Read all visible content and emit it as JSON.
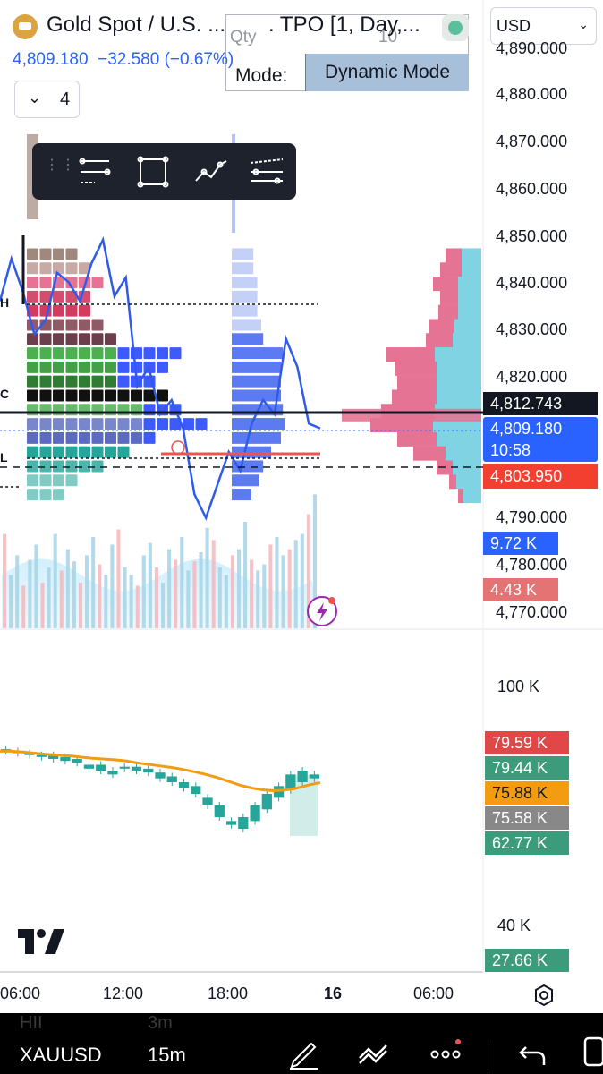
{
  "header": {
    "title": "Gold Spot / U.S. ...",
    "price": "4,809.180",
    "change": "−32.580",
    "change_pct": "(−0.67%)",
    "indicator_count": "4",
    "currency": "USD"
  },
  "tpo_panel": {
    "title": ". TPO [1, Day,...",
    "qty_label": "Qty",
    "qty_value": "10",
    "mode_label": "Mode:",
    "mode_value": "Dynamic Mode"
  },
  "toolbar": {
    "icons": [
      "fib-lines-icon",
      "rectangle-icon",
      "trend-path-icon",
      "parallel-lines-icon"
    ]
  },
  "price_axis": {
    "labels": [
      "4,890.000",
      "4,880.000",
      "4,870.000",
      "4,860.000",
      "4,850.000",
      "4,840.000",
      "4,830.000",
      "4,820.000",
      "4,790.000",
      "4,780.000",
      "4,770.000"
    ],
    "tag_last": "4,812.743",
    "tag_price": "4,809.180",
    "tag_countdown": "10:58",
    "tag_low": "4,803.950",
    "tag_vol_buy": "9.72 K",
    "tag_vol_sell": "4.43 K"
  },
  "tpo_markers": {
    "h": "H",
    "c": "C",
    "l": "L"
  },
  "lower_axis": {
    "label_top": "100 K",
    "label_bottom": "40 K",
    "tags": [
      "79.59 K",
      "79.44 K",
      "75.88 K",
      "75.58 K",
      "62.77 K",
      "27.66 K"
    ]
  },
  "time_axis": [
    "06:00",
    "12:00",
    "18:00",
    "16",
    "06:00"
  ],
  "bottom_bar": {
    "symbol": "XAUUSD",
    "timeframe": "15m",
    "ghost_symbol": "HII",
    "ghost_timeframe": "3m"
  },
  "colors": {
    "up": "#26a69a",
    "down": "#ef5350",
    "blue": "#2962ff",
    "orange": "#f39c12",
    "tpo_green": "#4caf50",
    "tpo_pink": "#e76f8f",
    "tpo_blue": "#3d5afe"
  },
  "chart_data": {
    "type": "candlestick",
    "price_range": [
      4770,
      4890
    ],
    "profile_prices": [
      4847,
      4844,
      4841,
      4838,
      4835,
      4832,
      4829,
      4826,
      4823,
      4820,
      4817,
      4814,
      4811,
      4808,
      4805,
      4802,
      4799,
      4796
    ],
    "profile_left_sell": [
      18,
      24,
      28,
      20,
      22,
      28,
      30,
      54,
      46,
      44,
      50,
      60,
      70,
      44,
      36,
      18,
      8,
      6
    ],
    "profile_left_buy": [
      22,
      22,
      26,
      26,
      26,
      30,
      32,
      52,
      50,
      50,
      50,
      52,
      54,
      50,
      40,
      32,
      28,
      20
    ],
    "line_series": [
      4836,
      4845,
      4838,
      4829,
      4832,
      4842,
      4840,
      4836,
      4844,
      4849,
      4837,
      4841,
      4818,
      4822,
      4812,
      4815,
      4809,
      4795,
      4790,
      4797,
      4804,
      4800,
      4810,
      4815,
      4812,
      4828,
      4822,
      4810,
      4809
    ],
    "volume_values": [
      62,
      35,
      48,
      28,
      45,
      55,
      30,
      40,
      62,
      38,
      52,
      44,
      30,
      48,
      60,
      42,
      35,
      55,
      65,
      40,
      35,
      28,
      48,
      56,
      40,
      30,
      52,
      45,
      60,
      38,
      44,
      50,
      66,
      58,
      40,
      35,
      48,
      52,
      70,
      45,
      38,
      42,
      55,
      60,
      48,
      52,
      58,
      62,
      75,
      88
    ],
    "lower_values": [
      84,
      84.5,
      84,
      83.5,
      83,
      83.5,
      82.5,
      83,
      82,
      83,
      81.5,
      82.5,
      81,
      82,
      79.5,
      80.5,
      79,
      80.5,
      78,
      79,
      79.5,
      80,
      79,
      80,
      78.5,
      79.5,
      77,
      78.5,
      76,
      77.5,
      74.5,
      76,
      73,
      75,
      70,
      72,
      67,
      70,
      65,
      66,
      64,
      67,
      66,
      70,
      69,
      73,
      72,
      75,
      74,
      78,
      76,
      79,
      77,
      78
    ],
    "lower_ma": [
      84,
      84,
      83.8,
      83.5,
      83.2,
      83,
      82.8,
      82.5,
      82.2,
      82,
      81.8,
      81.5,
      81,
      80.6,
      80.2,
      79.8,
      79.3,
      78.7,
      78,
      77.2,
      76.2,
      75.2,
      74.5,
      74,
      73.8,
      74,
      74.5,
      75.3,
      75.9
    ]
  }
}
